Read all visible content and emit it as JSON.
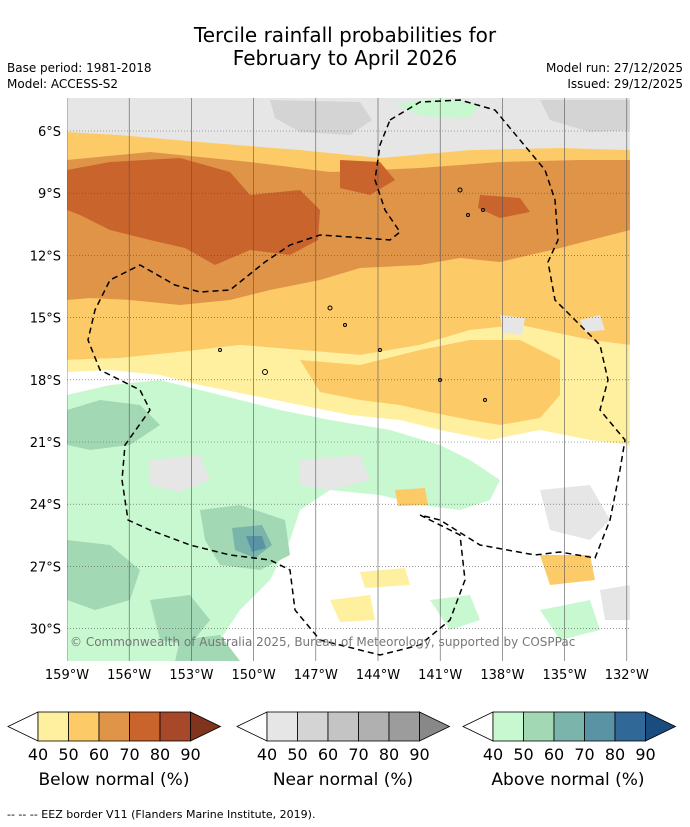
{
  "title": {
    "line1": "Tercile rainfall probabilities for",
    "line2": "February to April 2026"
  },
  "meta_left": {
    "base_period": "Base period: 1981-2018",
    "model": "Model: ACCESS-S2"
  },
  "meta_right": {
    "model_run": "Model run: 27/12/2025",
    "issued": "Issued: 29/12/2025"
  },
  "map": {
    "lat_labels": [
      "6°S",
      "9°S",
      "12°S",
      "15°S",
      "18°S",
      "21°S",
      "24°S",
      "27°S",
      "30°S"
    ],
    "lon_labels": [
      "159°W",
      "156°W",
      "153°W",
      "150°W",
      "147°W",
      "144°W",
      "141°W",
      "138°W",
      "135°W",
      "132°W"
    ],
    "copyright": "© Commonwealth of Australia 2025, Bureau of Meteorology, supported by COSPPac"
  },
  "legends": [
    {
      "name": "below",
      "title": "Below normal (%)",
      "ticks": [
        "40",
        "50",
        "60",
        "70",
        "80",
        "90"
      ],
      "colors": [
        "#fff0a0",
        "#fdca68",
        "#e09448",
        "#c8642c",
        "#a8482a",
        "#80341e"
      ]
    },
    {
      "name": "near",
      "title": "Near normal (%)",
      "ticks": [
        "40",
        "50",
        "60",
        "70",
        "80",
        "90"
      ],
      "colors": [
        "#e6e6e6",
        "#d4d4d4",
        "#c4c4c4",
        "#b0b0b0",
        "#9c9c9c",
        "#888888"
      ]
    },
    {
      "name": "above",
      "title": "Above normal (%)",
      "ticks": [
        "40",
        "50",
        "60",
        "70",
        "80",
        "90"
      ],
      "colors": [
        "#c8f8d0",
        "#a2d8b4",
        "#7ab4aa",
        "#5a94a4",
        "#306898",
        "#1a4c80"
      ]
    }
  ],
  "footnote": "--  --  -- EEZ border V11 (Flanders Marine Institute, 2019).",
  "colors": {
    "below_40": "#fff0a0",
    "below_50": "#fdca68",
    "below_60": "#e09448",
    "below_70": "#c8642c",
    "near_40": "#e6e6e6",
    "near_50": "#d4d4d4",
    "above_40": "#c8f8d0",
    "above_50": "#a2d8b4",
    "above_60": "#7ab4aa",
    "above_70": "#5a94a4"
  }
}
